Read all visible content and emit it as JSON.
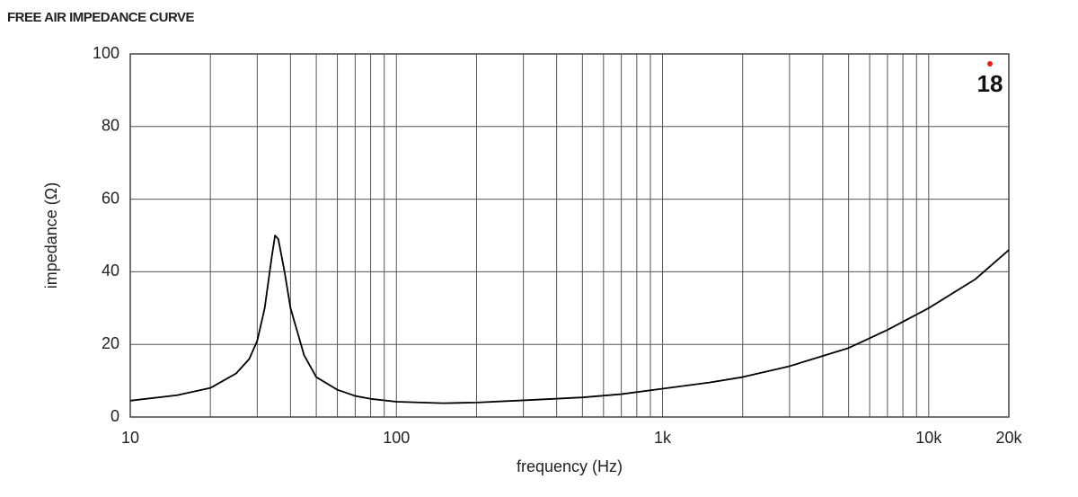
{
  "chart_data": {
    "type": "line",
    "title": "FREE AIR IMPEDANCE CURVE",
    "x_label": "frequency (Hz)",
    "y_label": "impedance (Ω)",
    "logo": "18",
    "x": [
      10,
      15,
      20,
      25,
      28,
      30,
      32,
      34,
      35,
      36,
      38,
      40,
      45,
      50,
      60,
      70,
      80,
      100,
      150,
      200,
      300,
      500,
      700,
      1000,
      1500,
      2000,
      3000,
      5000,
      7000,
      10000,
      15000,
      20000
    ],
    "series": [
      {
        "name": "impedance",
        "color": "#000000",
        "values": [
          4.5,
          6,
          8,
          12,
          16,
          21,
          30,
          44,
          50,
          49,
          40,
          30,
          17,
          11,
          7.5,
          5.8,
          5,
          4.2,
          3.8,
          4,
          4.6,
          5.4,
          6.3,
          7.8,
          9.5,
          11,
          14,
          19,
          24,
          30,
          38,
          46
        ]
      }
    ],
    "xlog": true,
    "xlim": [
      10,
      20000
    ],
    "xticks": [
      10,
      100,
      {
        "value": 1000,
        "label": "1k"
      },
      {
        "value": 10000,
        "label": "10k"
      },
      {
        "value": 20000,
        "label": "20k"
      }
    ],
    "xminorticks": [
      20,
      30,
      40,
      50,
      60,
      70,
      80,
      90,
      200,
      300,
      400,
      500,
      600,
      700,
      800,
      900,
      2000,
      3000,
      4000,
      5000,
      6000,
      7000,
      8000,
      9000
    ],
    "ylim": [
      0,
      100
    ],
    "yticks": [
      0,
      20,
      40,
      60,
      80,
      100
    ],
    "grid": true
  }
}
